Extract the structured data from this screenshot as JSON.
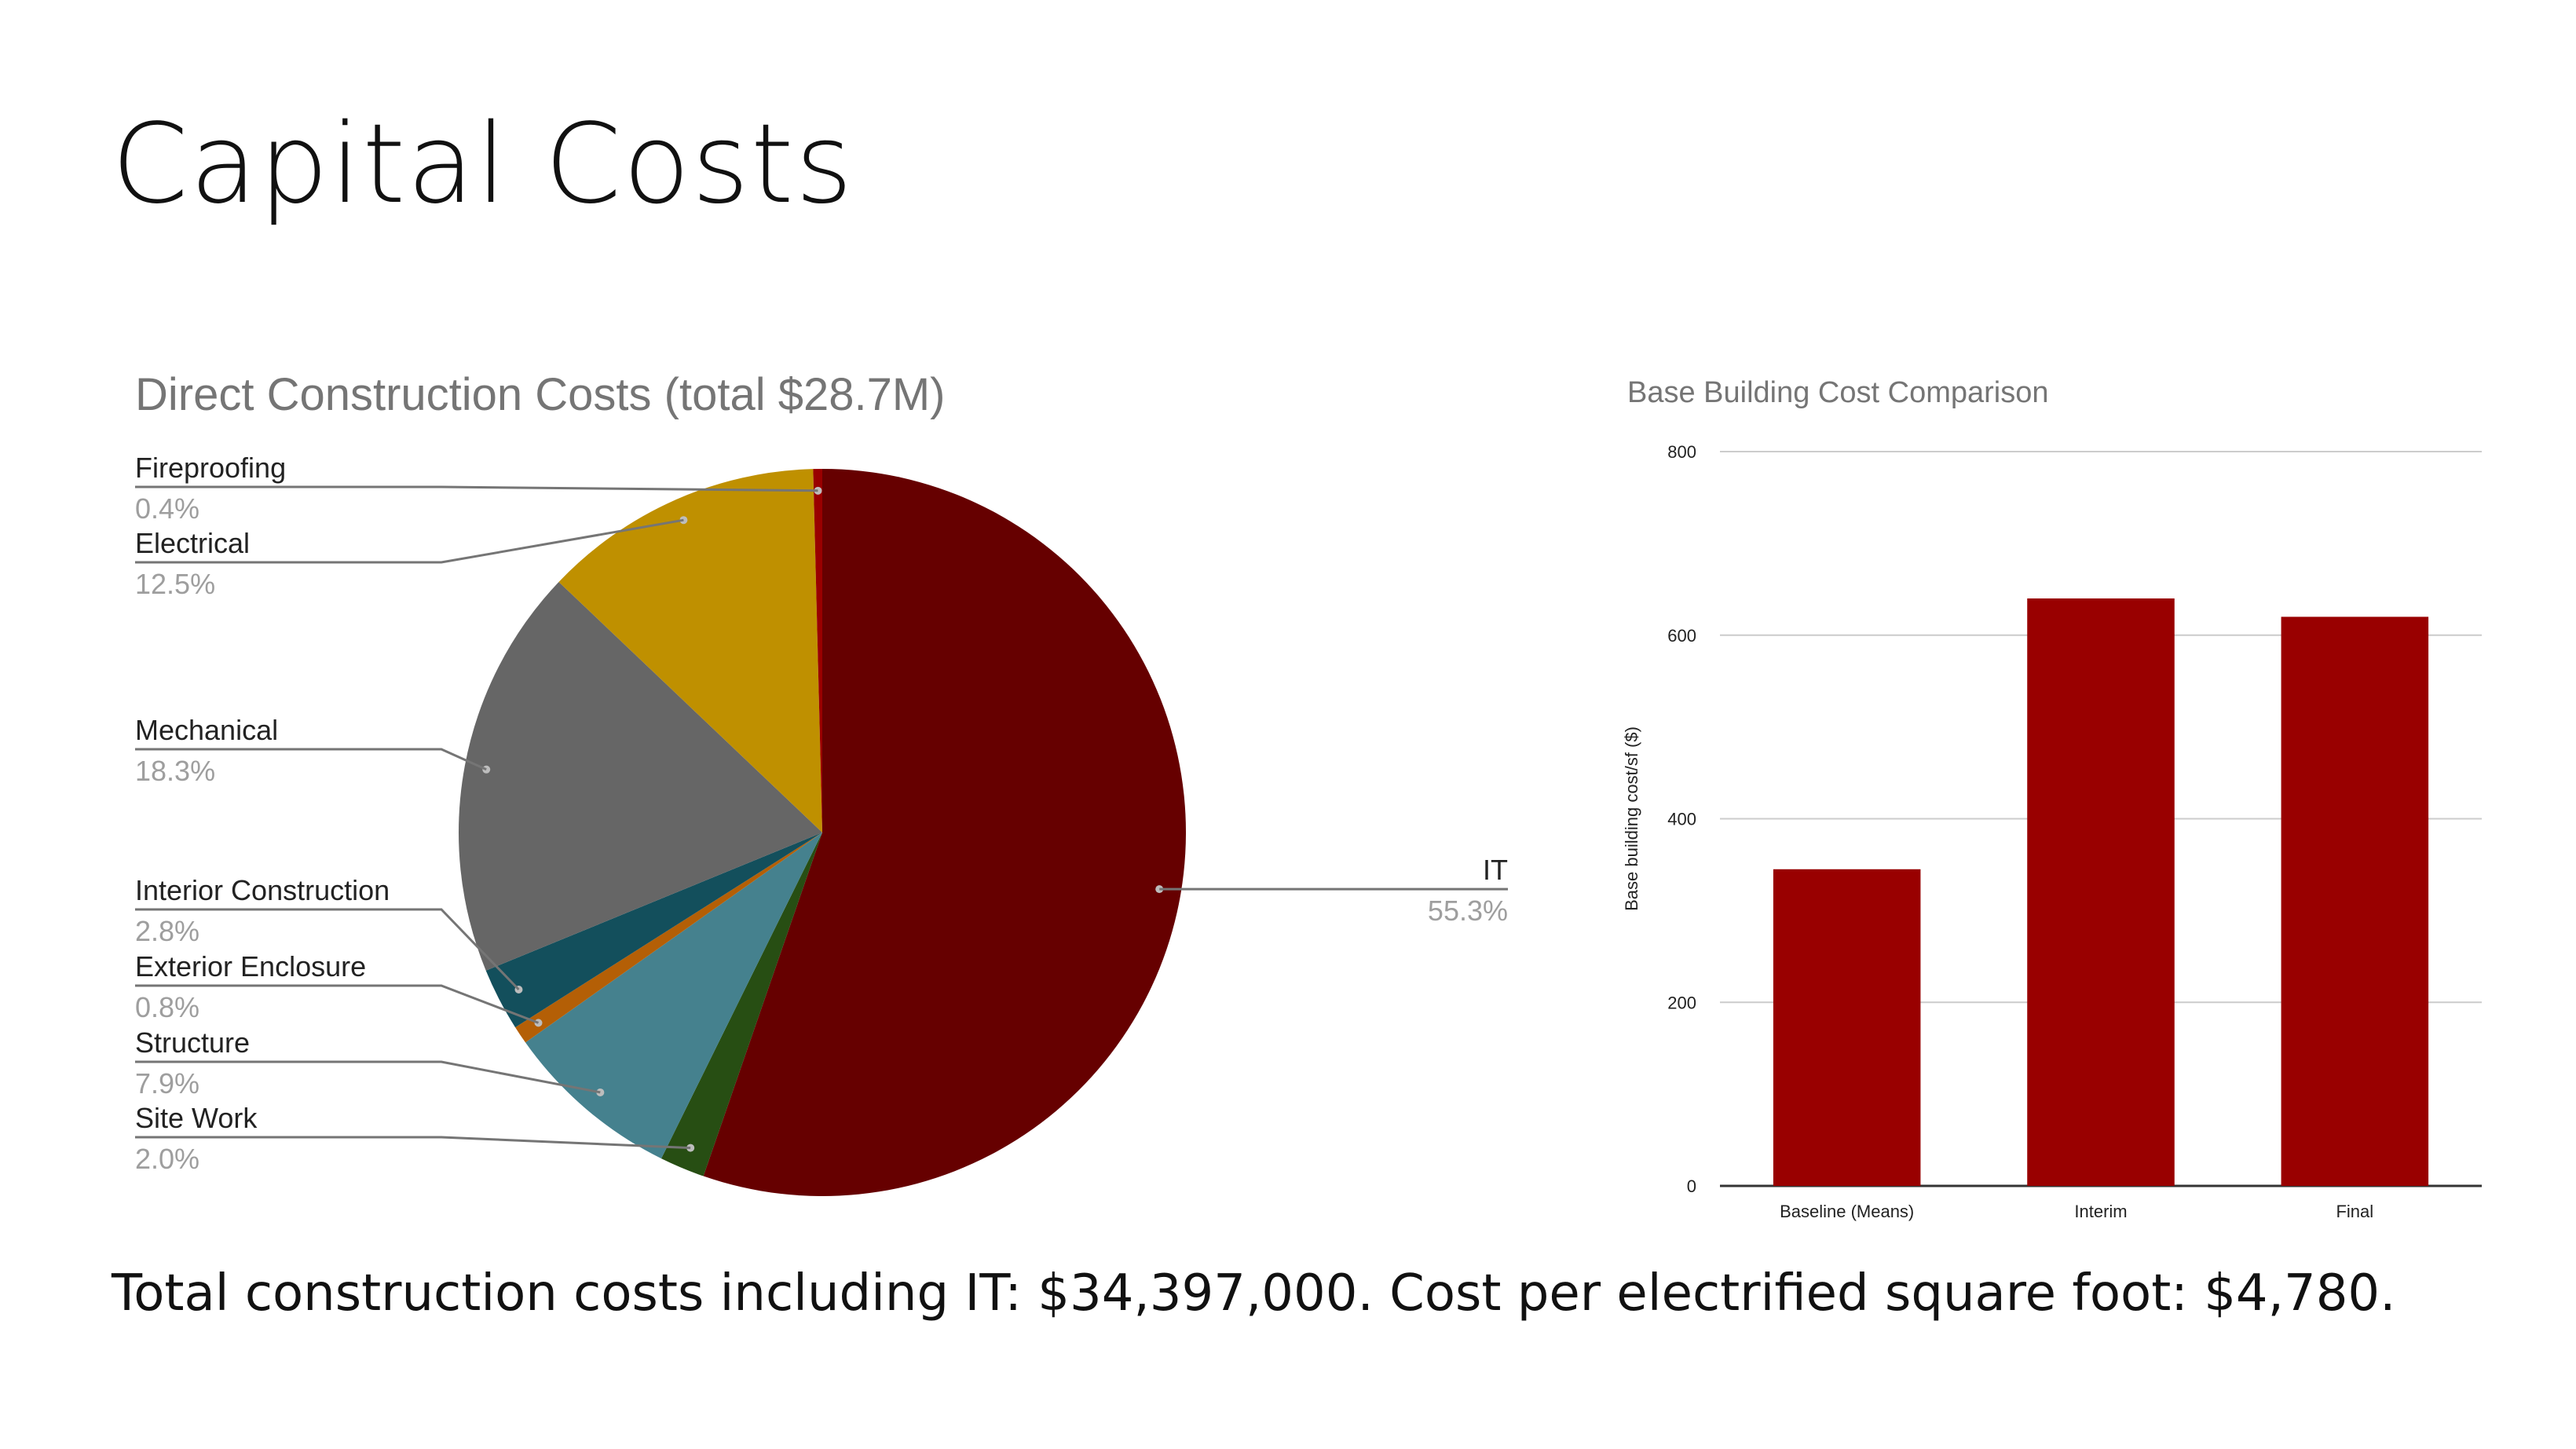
{
  "page": {
    "title": "Capital Costs",
    "footer": "Total construction costs including IT: $34,397,000.  Cost per electrified square foot: $4,780."
  },
  "chart_data": [
    {
      "type": "pie",
      "title": "Direct Construction Costs (total $28.7M)",
      "slices": [
        {
          "label": "IT",
          "value": 55.3,
          "display": "55.3%",
          "color": "#660000"
        },
        {
          "label": "Site Work",
          "value": 2.0,
          "display": "2.0%",
          "color": "#274e13"
        },
        {
          "label": "Structure",
          "value": 7.9,
          "display": "7.9%",
          "color": "#45818e"
        },
        {
          "label": "Exterior Enclosure",
          "value": 0.8,
          "display": "0.8%",
          "color": "#b45f06"
        },
        {
          "label": "Interior Construction",
          "value": 2.8,
          "display": "2.8%",
          "color": "#134f5c"
        },
        {
          "label": "Mechanical",
          "value": 18.3,
          "display": "18.3%",
          "color": "#666666"
        },
        {
          "label": "Electrical",
          "value": 12.5,
          "display": "12.5%",
          "color": "#bf9000"
        },
        {
          "label": "Fireproofing",
          "value": 0.4,
          "display": "0.4%",
          "color": "#990000"
        }
      ],
      "legend": "labels with leader lines"
    },
    {
      "type": "bar",
      "title": "Base Building Cost Comparison",
      "categories": [
        "Baseline (Means)",
        "Interim",
        "Final"
      ],
      "values": [
        345,
        640,
        620
      ],
      "ylabel": "Base building cost/sf ($)",
      "xlabel": "",
      "ylim": [
        0,
        800
      ],
      "yticks": [
        0,
        200,
        400,
        600,
        800
      ],
      "grid": true,
      "color": "#990000"
    }
  ]
}
